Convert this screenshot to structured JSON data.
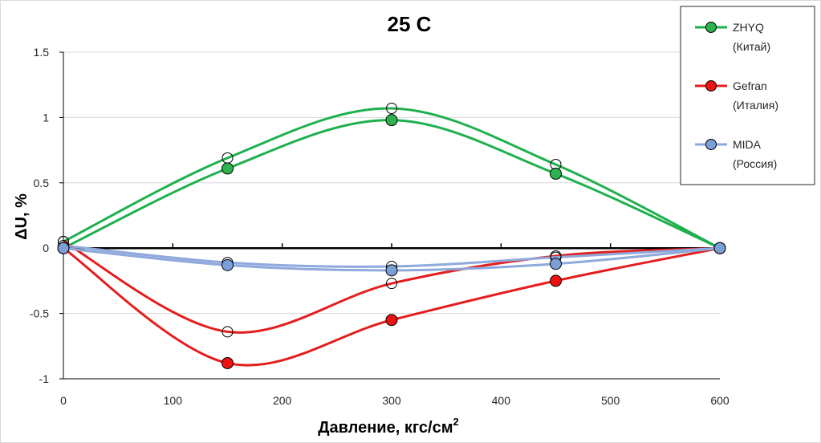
{
  "chart_data": {
    "type": "line",
    "title": "25 C",
    "xlabel": "Давление, кгс/см",
    "xlabel_sup": "2",
    "ylabel": "ΔU, %",
    "xlim": [
      0,
      600
    ],
    "ylim": [
      -1,
      1.5
    ],
    "x_ticks": [
      "0",
      "100",
      "200",
      "300",
      "400",
      "500",
      "600"
    ],
    "y_ticks": [
      "1.5",
      "1",
      "0.5",
      "0",
      "-0.5",
      "-1"
    ],
    "grid": "horizontal",
    "legend_position": "top-right",
    "series": [
      {
        "name_lines": [
          "ZHYQ",
          "(Китай)"
        ],
        "color": "#1FB04E",
        "marker_fill": "#2EB24F",
        "curves": [
          {
            "x": [
              0,
              150,
              300,
              450,
              600
            ],
            "y": [
              0.0,
              0.61,
              0.98,
              0.57,
              0.0
            ],
            "filled": true
          },
          {
            "x": [
              0,
              150,
              300,
              450,
              600
            ],
            "y": [
              0.05,
              0.69,
              1.07,
              0.64,
              0.0
            ],
            "filled": false
          }
        ]
      },
      {
        "name_lines": [
          "Gefran",
          "(Италия)"
        ],
        "color": "#E41E1E",
        "marker_fill": "#EE1111",
        "curves": [
          {
            "x": [
              0,
              150,
              300,
              450,
              600
            ],
            "y": [
              0.0,
              -0.88,
              -0.55,
              -0.25,
              0.0
            ],
            "filled": true
          },
          {
            "x": [
              0,
              150,
              300,
              450,
              600
            ],
            "y": [
              0.05,
              -0.64,
              -0.27,
              -0.06,
              0.0
            ],
            "filled": false
          }
        ]
      },
      {
        "name_lines": [
          "MIDA",
          "(Россия)"
        ],
        "color": "#8EA9DB",
        "marker_fill": "#7B9FD8",
        "curves": [
          {
            "x": [
              0,
              150,
              300,
              450,
              600
            ],
            "y": [
              0.0,
              -0.13,
              -0.17,
              -0.12,
              0.0
            ],
            "filled": true
          },
          {
            "x": [
              0,
              150,
              300,
              450,
              600
            ],
            "y": [
              0.02,
              -0.11,
              -0.14,
              -0.07,
              0.0
            ],
            "filled": false
          }
        ]
      }
    ]
  }
}
